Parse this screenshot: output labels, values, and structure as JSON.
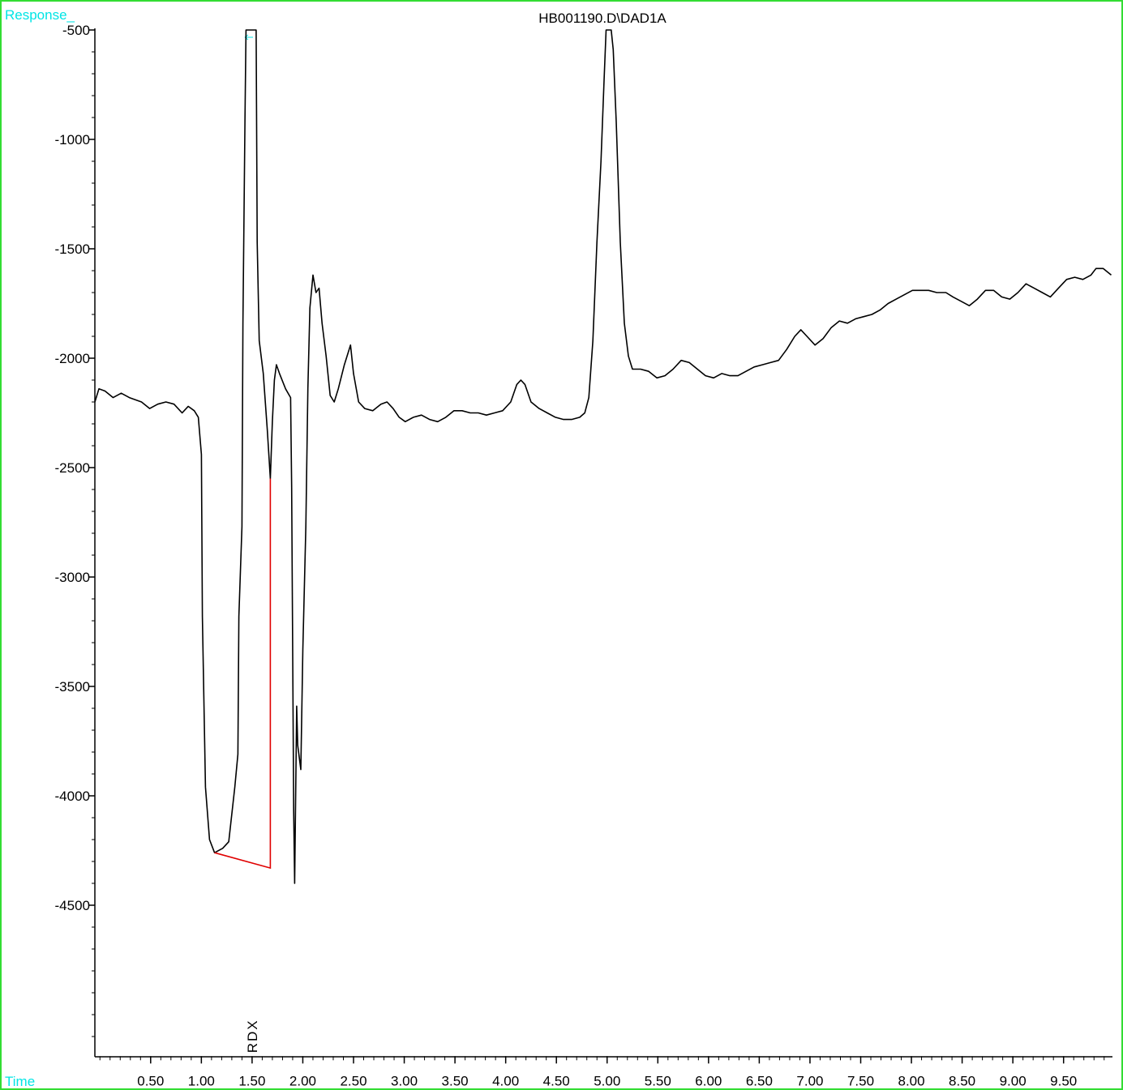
{
  "chart_data": {
    "type": "line",
    "title": "HB001190.D\\DAD1A",
    "y_label": "Response_",
    "x_label": "Time",
    "xlim": [
      -0.05,
      9.97
    ],
    "ylim": [
      -5190,
      -500
    ],
    "xticks": [
      {
        "value": 0.5,
        "label": "0.50"
      },
      {
        "value": 1.0,
        "label": "1.00"
      },
      {
        "value": 1.5,
        "label": "1.50"
      },
      {
        "value": 2.0,
        "label": "2.00"
      },
      {
        "value": 2.5,
        "label": "2.50"
      },
      {
        "value": 3.0,
        "label": "3.00"
      },
      {
        "value": 3.5,
        "label": "3.50"
      },
      {
        "value": 4.0,
        "label": "4.00"
      },
      {
        "value": 4.5,
        "label": "4.50"
      },
      {
        "value": 5.0,
        "label": "5.00"
      },
      {
        "value": 5.5,
        "label": "5.50"
      },
      {
        "value": 6.0,
        "label": "6.00"
      },
      {
        "value": 6.5,
        "label": "6.50"
      },
      {
        "value": 7.0,
        "label": "7.00"
      },
      {
        "value": 7.5,
        "label": "7.50"
      },
      {
        "value": 8.0,
        "label": "8.00"
      },
      {
        "value": 8.5,
        "label": "8.50"
      },
      {
        "value": 9.0,
        "label": "9.00"
      },
      {
        "value": 9.5,
        "label": "9.50"
      }
    ],
    "yticks": [
      -500,
      -1000,
      -1500,
      -2000,
      -2500,
      -3000,
      -3500,
      -4000,
      -4500
    ],
    "x": [
      -0.05,
      -0.01,
      0.05,
      0.13,
      0.21,
      0.29,
      0.41,
      0.49,
      0.57,
      0.65,
      0.73,
      0.81,
      0.87,
      0.93,
      0.97,
      1.0,
      1.01,
      1.04,
      1.08,
      1.13,
      1.21,
      1.27,
      1.33,
      1.36,
      1.37,
      1.4,
      1.41,
      1.43,
      1.44,
      1.54,
      1.55,
      1.57,
      1.61,
      1.65,
      1.68,
      1.7,
      1.72,
      1.74,
      1.77,
      1.83,
      1.88,
      1.89,
      1.91,
      1.92,
      1.94,
      1.95,
      1.98,
      2.0,
      2.03,
      2.05,
      2.07,
      2.1,
      2.13,
      2.16,
      2.19,
      2.23,
      2.27,
      2.31,
      2.35,
      2.41,
      2.47,
      2.5,
      2.55,
      2.61,
      2.69,
      2.77,
      2.83,
      2.89,
      2.95,
      3.01,
      3.09,
      3.17,
      3.25,
      3.33,
      3.41,
      3.49,
      3.57,
      3.65,
      3.73,
      3.81,
      3.89,
      3.97,
      4.05,
      4.11,
      4.15,
      4.19,
      4.25,
      4.33,
      4.41,
      4.49,
      4.57,
      4.65,
      4.73,
      4.78,
      4.82,
      4.86,
      4.9,
      4.94,
      4.97,
      4.99,
      5.04,
      5.06,
      5.09,
      5.13,
      5.17,
      5.21,
      5.25,
      5.33,
      5.41,
      5.49,
      5.57,
      5.65,
      5.73,
      5.81,
      5.89,
      5.97,
      6.05,
      6.13,
      6.21,
      6.29,
      6.37,
      6.45,
      6.53,
      6.61,
      6.69,
      6.77,
      6.85,
      6.91,
      6.97,
      7.05,
      7.13,
      7.21,
      7.29,
      7.37,
      7.45,
      7.53,
      7.61,
      7.69,
      7.77,
      7.85,
      7.93,
      8.01,
      8.09,
      8.17,
      8.25,
      8.34,
      8.41,
      8.49,
      8.57,
      8.65,
      8.73,
      8.81,
      8.89,
      8.97,
      9.05,
      9.13,
      9.21,
      9.29,
      9.37,
      9.45,
      9.53,
      9.61,
      9.69,
      9.77,
      9.82,
      9.89,
      9.97
    ],
    "series": [
      {
        "color": "#000000",
        "values": [
          -2200,
          -2140,
          -2150,
          -2180,
          -2160,
          -2180,
          -2200,
          -2230,
          -2210,
          -2200,
          -2210,
          -2250,
          -2220,
          -2240,
          -2270,
          -2440,
          -3180,
          -3960,
          -4200,
          -4260,
          -4240,
          -4210,
          -3960,
          -3810,
          -3180,
          -2770,
          -1840,
          -920,
          -500,
          -500,
          -1470,
          -1920,
          -2070,
          -2330,
          -2550,
          -2290,
          -2100,
          -2030,
          -2070,
          -2140,
          -2180,
          -2590,
          -4070,
          -4400,
          -3590,
          -3770,
          -3880,
          -3330,
          -2770,
          -2140,
          -1770,
          -1620,
          -1700,
          -1680,
          -1840,
          -1990,
          -2170,
          -2200,
          -2140,
          -2030,
          -1940,
          -2070,
          -2200,
          -2230,
          -2240,
          -2210,
          -2200,
          -2230,
          -2270,
          -2290,
          -2270,
          -2260,
          -2280,
          -2290,
          -2270,
          -2240,
          -2240,
          -2250,
          -2250,
          -2260,
          -2250,
          -2240,
          -2200,
          -2120,
          -2100,
          -2120,
          -2200,
          -2230,
          -2250,
          -2270,
          -2280,
          -2280,
          -2270,
          -2250,
          -2180,
          -1920,
          -1470,
          -1100,
          -730,
          -500,
          -500,
          -590,
          -920,
          -1470,
          -1840,
          -1990,
          -2050,
          -2050,
          -2060,
          -2090,
          -2080,
          -2050,
          -2010,
          -2020,
          -2050,
          -2080,
          -2090,
          -2070,
          -2080,
          -2080,
          -2060,
          -2040,
          -2030,
          -2020,
          -2010,
          -1960,
          -1900,
          -1870,
          -1900,
          -1940,
          -1910,
          -1860,
          -1830,
          -1840,
          -1820,
          -1810,
          -1800,
          -1780,
          -1750,
          -1730,
          -1710,
          -1690,
          -1690,
          -1690,
          -1700,
          -1700,
          -1720,
          -1740,
          -1760,
          -1730,
          -1690,
          -1690,
          -1720,
          -1730,
          -1700,
          -1660,
          -1680,
          -1700,
          -1720,
          -1680,
          -1640,
          -1630,
          -1640,
          -1620,
          -1590,
          -1590,
          -1620
        ]
      }
    ],
    "baseline": {
      "color": "#e00000",
      "x": [
        1.13,
        1.68,
        1.68
      ],
      "values": [
        -4260,
        -4330,
        -2550
      ]
    },
    "annotations": [
      {
        "text": "RDX",
        "x": 1.5
      }
    ]
  }
}
